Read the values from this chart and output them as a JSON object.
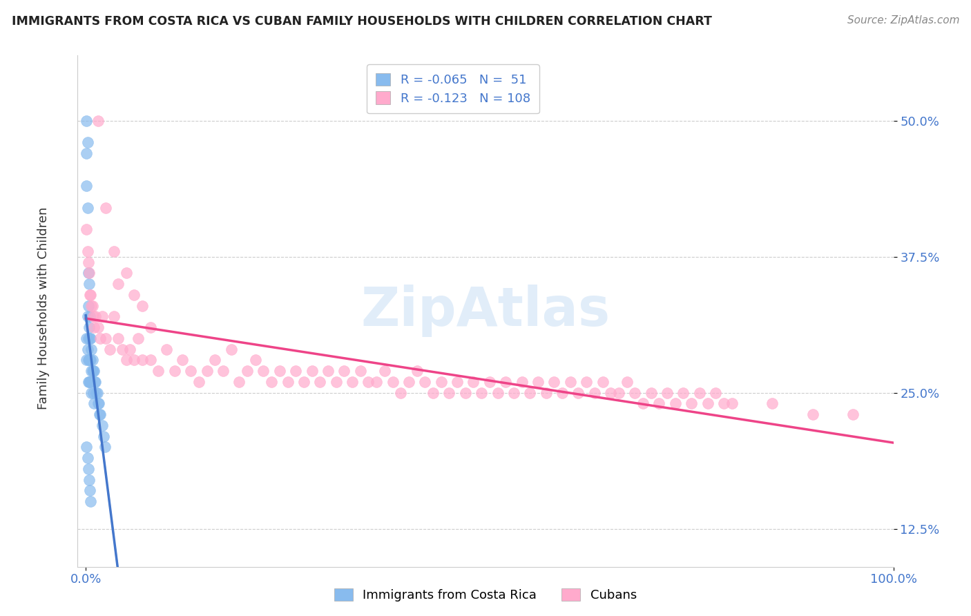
{
  "title": "IMMIGRANTS FROM COSTA RICA VS CUBAN FAMILY HOUSEHOLDS WITH CHILDREN CORRELATION CHART",
  "source": "Source: ZipAtlas.com",
  "ylabel": "Family Households with Children",
  "color_blue": "#88BBEE",
  "color_pink": "#FFAACC",
  "color_blue_line": "#4477CC",
  "color_pink_line": "#EE4488",
  "color_dashed": "#99BBDD",
  "watermark": "ZipAtlas",
  "legend_R1": "R = -0.065",
  "legend_N1": "N =  51",
  "legend_R2": "R = -0.123",
  "legend_N2": "N = 108",
  "background_color": "#FFFFFF",
  "grid_color": "#CCCCCC",
  "blue_x": [
    0.001,
    0.001,
    0.001,
    0.001,
    0.001,
    0.002,
    0.002,
    0.002,
    0.002,
    0.003,
    0.003,
    0.003,
    0.003,
    0.003,
    0.004,
    0.004,
    0.004,
    0.004,
    0.005,
    0.005,
    0.005,
    0.005,
    0.006,
    0.006,
    0.006,
    0.007,
    0.007,
    0.007,
    0.008,
    0.008,
    0.009,
    0.009,
    0.01,
    0.01,
    0.011,
    0.012,
    0.013,
    0.014,
    0.015,
    0.016,
    0.017,
    0.018,
    0.02,
    0.022,
    0.024,
    0.001,
    0.002,
    0.003,
    0.004,
    0.005,
    0.006
  ],
  "blue_y": [
    0.5,
    0.47,
    0.44,
    0.3,
    0.28,
    0.48,
    0.42,
    0.32,
    0.29,
    0.36,
    0.33,
    0.3,
    0.28,
    0.26,
    0.35,
    0.31,
    0.28,
    0.26,
    0.32,
    0.3,
    0.28,
    0.26,
    0.3,
    0.28,
    0.26,
    0.29,
    0.27,
    0.25,
    0.28,
    0.27,
    0.27,
    0.25,
    0.27,
    0.24,
    0.26,
    0.26,
    0.25,
    0.25,
    0.24,
    0.24,
    0.23,
    0.23,
    0.22,
    0.21,
    0.2,
    0.2,
    0.19,
    0.18,
    0.17,
    0.16,
    0.15
  ],
  "pink_x": [
    0.001,
    0.002,
    0.003,
    0.004,
    0.005,
    0.006,
    0.007,
    0.008,
    0.009,
    0.01,
    0.012,
    0.015,
    0.018,
    0.02,
    0.025,
    0.03,
    0.035,
    0.04,
    0.045,
    0.05,
    0.055,
    0.06,
    0.065,
    0.07,
    0.08,
    0.09,
    0.1,
    0.11,
    0.12,
    0.13,
    0.14,
    0.15,
    0.16,
    0.17,
    0.18,
    0.19,
    0.2,
    0.21,
    0.22,
    0.23,
    0.24,
    0.25,
    0.26,
    0.27,
    0.28,
    0.29,
    0.3,
    0.31,
    0.32,
    0.33,
    0.34,
    0.35,
    0.36,
    0.37,
    0.38,
    0.39,
    0.4,
    0.41,
    0.42,
    0.43,
    0.44,
    0.45,
    0.46,
    0.47,
    0.48,
    0.49,
    0.5,
    0.51,
    0.52,
    0.53,
    0.54,
    0.55,
    0.56,
    0.57,
    0.58,
    0.59,
    0.6,
    0.61,
    0.62,
    0.63,
    0.64,
    0.65,
    0.66,
    0.67,
    0.68,
    0.69,
    0.7,
    0.71,
    0.72,
    0.73,
    0.74,
    0.75,
    0.76,
    0.77,
    0.78,
    0.79,
    0.8,
    0.85,
    0.9,
    0.95,
    0.015,
    0.025,
    0.035,
    0.04,
    0.05,
    0.06,
    0.07,
    0.08
  ],
  "pink_y": [
    0.4,
    0.38,
    0.37,
    0.36,
    0.34,
    0.34,
    0.33,
    0.33,
    0.32,
    0.31,
    0.32,
    0.31,
    0.3,
    0.32,
    0.3,
    0.29,
    0.32,
    0.3,
    0.29,
    0.28,
    0.29,
    0.28,
    0.3,
    0.28,
    0.28,
    0.27,
    0.29,
    0.27,
    0.28,
    0.27,
    0.26,
    0.27,
    0.28,
    0.27,
    0.29,
    0.26,
    0.27,
    0.28,
    0.27,
    0.26,
    0.27,
    0.26,
    0.27,
    0.26,
    0.27,
    0.26,
    0.27,
    0.26,
    0.27,
    0.26,
    0.27,
    0.26,
    0.26,
    0.27,
    0.26,
    0.25,
    0.26,
    0.27,
    0.26,
    0.25,
    0.26,
    0.25,
    0.26,
    0.25,
    0.26,
    0.25,
    0.26,
    0.25,
    0.26,
    0.25,
    0.26,
    0.25,
    0.26,
    0.25,
    0.26,
    0.25,
    0.26,
    0.25,
    0.26,
    0.25,
    0.26,
    0.25,
    0.25,
    0.26,
    0.25,
    0.24,
    0.25,
    0.24,
    0.25,
    0.24,
    0.25,
    0.24,
    0.25,
    0.24,
    0.25,
    0.24,
    0.24,
    0.24,
    0.23,
    0.23,
    0.5,
    0.42,
    0.38,
    0.35,
    0.36,
    0.34,
    0.33,
    0.31
  ]
}
